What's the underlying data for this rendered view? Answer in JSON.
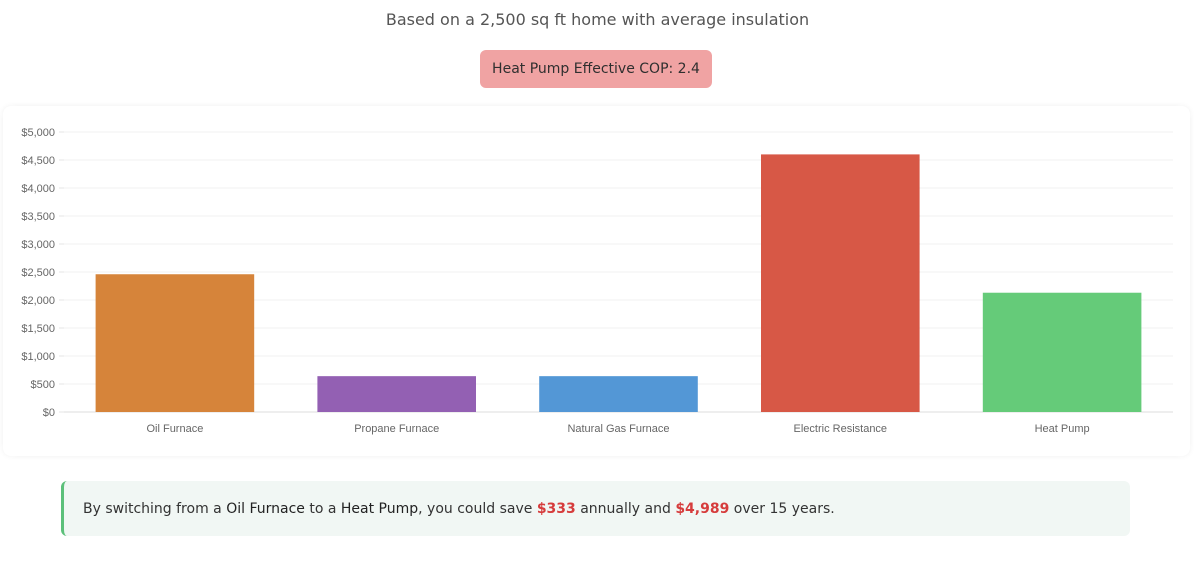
{
  "header": {
    "subtitle": "Based on a 2,500 sq ft home with average insulation",
    "cop_badge": "Heat Pump Effective COP: 2.4"
  },
  "colors": {
    "bars": [
      "#d6843a",
      "#9360b3",
      "#5397d6",
      "#d75846",
      "#65cb79"
    ],
    "badge_bg": "#f0a3a3",
    "savings_accent": "#5cc07a",
    "money": "#d63c3c"
  },
  "chart_data": {
    "type": "bar",
    "categories": [
      "Oil Furnace",
      "Propane Furnace",
      "Natural Gas Furnace",
      "Electric Resistance",
      "Heat Pump"
    ],
    "values": [
      2460,
      640,
      640,
      4600,
      2130
    ],
    "ylim": [
      0,
      5000
    ],
    "yticks": [
      0,
      500,
      1000,
      1500,
      2000,
      2500,
      3000,
      3500,
      4000,
      4500,
      5000
    ],
    "ytick_labels": [
      "$0",
      "$500",
      "$1,000",
      "$1,500",
      "$2,000",
      "$2,500",
      "$3,000",
      "$3,500",
      "$4,000",
      "$4,500",
      "$5,000"
    ],
    "grid": true,
    "legend": "none"
  },
  "savings": {
    "prefix": "By switching from a ",
    "from": "Oil Furnace",
    "mid1": " to a ",
    "to": "Heat Pump",
    "mid2": ", you could save ",
    "annual": "$333",
    "mid3": " annually and ",
    "total": "$4,989",
    "suffix": " over 15 years."
  }
}
